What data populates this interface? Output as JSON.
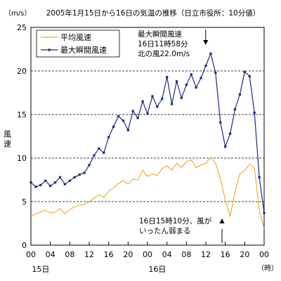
{
  "chart_data": {
    "type": "line",
    "title": "2005年1月15日から16日の気温の推移（日立市役所：10分値）",
    "y_unit": "（m/s）",
    "ylabel": "風速",
    "xlabel": "（時）",
    "ylim": [
      0,
      25
    ],
    "y_ticks": [
      0,
      5,
      10,
      15,
      20,
      25
    ],
    "xlim": [
      0,
      48
    ],
    "x_tick_labels": [
      "00",
      "04",
      "08",
      "12",
      "16",
      "20",
      "00",
      "04",
      "08",
      "12",
      "16",
      "20",
      "00"
    ],
    "x_day_labels": [
      "15日",
      "16日"
    ],
    "grid": "horizontal-dashed",
    "legend_position": "top-left",
    "colors": {
      "avg": "#f5a320",
      "max": "#1a2a80"
    },
    "series": [
      {
        "name": "平均風速",
        "x": [
          0,
          1,
          2,
          3,
          4,
          5,
          6,
          7,
          8,
          9,
          10,
          11,
          12,
          13,
          14,
          15,
          16,
          17,
          18,
          19,
          20,
          21,
          22,
          23,
          24,
          25,
          26,
          27,
          28,
          29,
          30,
          31,
          32,
          33,
          34,
          35,
          36,
          37,
          38,
          39,
          40,
          41,
          42,
          43,
          44,
          45,
          46,
          47,
          48
        ],
        "values": [
          3.3,
          3.6,
          3.8,
          4.0,
          3.7,
          3.8,
          4.2,
          3.6,
          4.1,
          4.4,
          4.6,
          4.7,
          5.0,
          5.4,
          5.8,
          5.5,
          6.2,
          6.6,
          7.1,
          7.4,
          7.0,
          7.6,
          7.5,
          8.6,
          7.9,
          8.2,
          8.0,
          8.8,
          9.1,
          8.6,
          9.4,
          8.9,
          9.6,
          9.8,
          8.9,
          9.2,
          9.4,
          10.1,
          9.4,
          7.6,
          5.2,
          3.3,
          6.1,
          8.2,
          8.6,
          9.3,
          8.9,
          4.0,
          1.9
        ]
      },
      {
        "name": "最大瞬間風速",
        "x": [
          0,
          1,
          2,
          3,
          4,
          5,
          6,
          7,
          8,
          9,
          10,
          11,
          12,
          13,
          14,
          15,
          16,
          17,
          18,
          19,
          20,
          21,
          22,
          23,
          24,
          25,
          26,
          27,
          28,
          29,
          30,
          31,
          32,
          33,
          34,
          35,
          36,
          37,
          38,
          39,
          40,
          41,
          42,
          43,
          44,
          45,
          46,
          47,
          48
        ],
        "values": [
          7.2,
          6.7,
          6.9,
          7.4,
          6.8,
          7.2,
          7.8,
          7.0,
          7.4,
          7.8,
          8.1,
          8.3,
          9.2,
          10.3,
          11.1,
          10.6,
          12.4,
          13.6,
          14.8,
          14.3,
          13.2,
          15.4,
          14.6,
          16.5,
          15.1,
          17.1,
          15.9,
          16.8,
          19.3,
          16.2,
          18.8,
          16.9,
          18.4,
          19.6,
          18.1,
          19.2,
          20.6,
          22.0,
          19.8,
          14.1,
          11.3,
          12.8,
          15.6,
          17.3,
          19.9,
          19.4,
          15.2,
          7.8,
          3.7
        ]
      }
    ],
    "annotations": [
      {
        "lines": [
          "最大瞬間風速",
          "16日11時58分",
          "北の風22.0m/s"
        ],
        "x": 35.97,
        "y": 22.0,
        "arrow": "down"
      },
      {
        "lines": [
          "16日15時10分、風が",
          "いったん弱まる"
        ],
        "x": 39.17,
        "y": 3.3,
        "arrow": "up"
      }
    ]
  }
}
